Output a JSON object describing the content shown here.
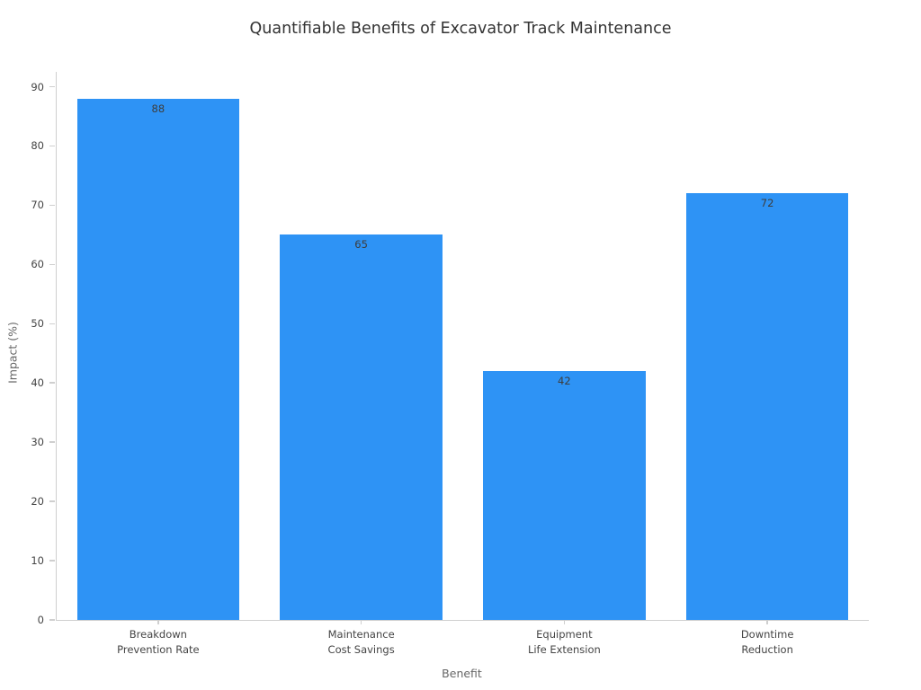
{
  "chart_data": {
    "type": "bar",
    "title": "Quantifiable Benefits of Excavator Track Maintenance",
    "xlabel": "Benefit",
    "ylabel": "Impact (%)",
    "categories": [
      "Breakdown\nPrevention Rate",
      "Maintenance\nCost Savings",
      "Equipment\nLife Extension",
      "Downtime\nReduction"
    ],
    "values": [
      88,
      65,
      42,
      72
    ],
    "value_labels": [
      "88",
      "65",
      "42",
      "72"
    ],
    "yticks": [
      0,
      10,
      20,
      30,
      40,
      50,
      60,
      70,
      80,
      90
    ],
    "ylim": [
      0,
      92.5
    ],
    "grid": false,
    "legend": null,
    "bar_color": "#2E93F5",
    "axis_line_color": "#cfcfcf",
    "tick_label_color": "#444444",
    "axis_label_color": "#666666",
    "title_color": "#333333",
    "value_label_color": "#3d3d3d"
  }
}
